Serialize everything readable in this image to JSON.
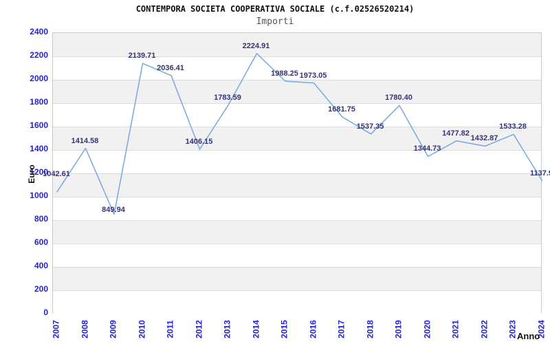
{
  "header": {
    "title": "CONTEMPORA SOCIETA COOPERATIVA SOCIALE (c.f.02526520214)",
    "subtitle": "Importi"
  },
  "chart_data": {
    "type": "line",
    "title": "CONTEMPORA SOCIETA COOPERATIVA SOCIALE (c.f.02526520214)",
    "subtitle": "Importi",
    "xlabel": "Anno",
    "ylabel": "Euro",
    "categories": [
      "2007",
      "2008",
      "2009",
      "2010",
      "2011",
      "2012",
      "2013",
      "2014",
      "2015",
      "2016",
      "2017",
      "2018",
      "2019",
      "2020",
      "2021",
      "2022",
      "2023",
      "2024"
    ],
    "values": [
      1042.61,
      1414.58,
      849.94,
      2139.71,
      2036.41,
      1406.15,
      1783.59,
      2224.91,
      1988.25,
      1973.05,
      1681.75,
      1537.35,
      1780.4,
      1344.73,
      1477.82,
      1432.87,
      1533.28,
      1137.9
    ],
    "point_labels": [
      "1042.61",
      "1414.58",
      "849.94",
      "2139.71",
      "2036.41",
      "1406.15",
      "1783.59",
      "2224.91",
      "1988.25",
      "1973.05",
      "1681.75",
      "1537.35",
      "1780.40",
      "1344.73",
      "1477.82",
      "1432.87",
      "1533.28",
      "1137.9"
    ],
    "yticks": [
      0,
      200,
      400,
      600,
      800,
      1000,
      1200,
      1400,
      1600,
      1800,
      2000,
      2200,
      2400
    ],
    "ylim": [
      0,
      2400
    ],
    "ytick_step": 200,
    "grid": "horizontal",
    "banded_background": true,
    "legend": "none",
    "series_name": "Importi"
  },
  "colors": {
    "line": "#77a7de",
    "tick_label": "#2323cc",
    "point_label": "#333377",
    "band_gray": "#f1f1f1",
    "band_white": "#ffffff",
    "gridline": "#dcdcdc",
    "plot_border": "#c9c9c9",
    "title": "#111111",
    "subtitle": "#555555",
    "axis_title": "#111111"
  }
}
